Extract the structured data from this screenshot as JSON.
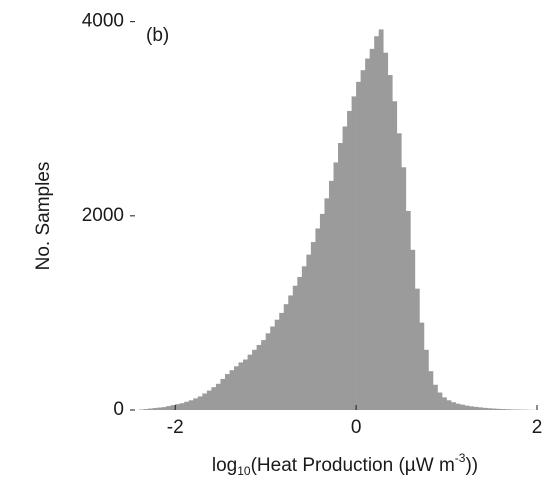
{
  "chart_data": {
    "type": "histogram",
    "annotation": "(b)",
    "ylabel": "No. Samples",
    "xlabel": {
      "prefix": "log",
      "sub": "10",
      "mid": "(Heat Production (µW m",
      "sup": "-3",
      "suffix": "))"
    },
    "color": "#9b9b9b",
    "xlim": [
      -2.5,
      2
    ],
    "ylim": [
      0,
      4120
    ],
    "xticks": [
      -2,
      0,
      2
    ],
    "yticks": [
      0,
      2000,
      4000
    ],
    "bins": [
      -2.5,
      -2.45,
      -2.4,
      -2.35,
      -2.3,
      -2.25,
      -2.2,
      -2.15,
      -2.1,
      -2.05,
      -2,
      -1.95,
      -1.9,
      -1.85,
      -1.8,
      -1.75,
      -1.7,
      -1.65,
      -1.6,
      -1.55,
      -1.5,
      -1.45,
      -1.4,
      -1.35,
      -1.3,
      -1.25,
      -1.2,
      -1.15,
      -1.1,
      -1.05,
      -1,
      -0.95,
      -0.9,
      -0.85,
      -0.8,
      -0.75,
      -0.7,
      -0.65,
      -0.6,
      -0.55,
      -0.5,
      -0.45,
      -0.4,
      -0.35,
      -0.3,
      -0.25,
      -0.2,
      -0.15,
      -0.1,
      -0.05,
      0,
      0.05,
      0.1,
      0.15,
      0.2,
      0.25,
      0.3,
      0.35,
      0.4,
      0.45,
      0.5,
      0.55,
      0.6,
      0.65,
      0.7,
      0.75,
      0.8,
      0.85,
      0.9,
      0.95,
      1,
      1.05,
      1.1,
      1.15,
      1.2,
      1.25,
      1.3,
      1.35,
      1.4,
      1.45,
      1.5,
      1.55,
      1.6,
      1.65,
      1.7,
      1.75,
      1.8,
      1.85,
      1.9,
      1.95,
      2
    ],
    "values": [
      0,
      0,
      5,
      10,
      15,
      20,
      25,
      30,
      40,
      50,
      60,
      70,
      85,
      100,
      120,
      140,
      170,
      200,
      235,
      270,
      320,
      370,
      410,
      450,
      490,
      520,
      570,
      620,
      670,
      720,
      790,
      860,
      930,
      1000,
      1090,
      1180,
      1280,
      1370,
      1480,
      1600,
      1730,
      1870,
      2020,
      2180,
      2360,
      2550,
      2750,
      2920,
      3080,
      3230,
      3380,
      3500,
      3620,
      3720,
      3850,
      3920,
      3680,
      3450,
      3180,
      2850,
      2500,
      2050,
      1650,
      1250,
      900,
      620,
      400,
      260,
      180,
      130,
      100,
      80,
      65,
      55,
      45,
      38,
      32,
      27,
      22,
      18,
      15,
      12,
      10,
      8,
      6,
      5,
      4,
      3,
      2,
      1
    ]
  }
}
